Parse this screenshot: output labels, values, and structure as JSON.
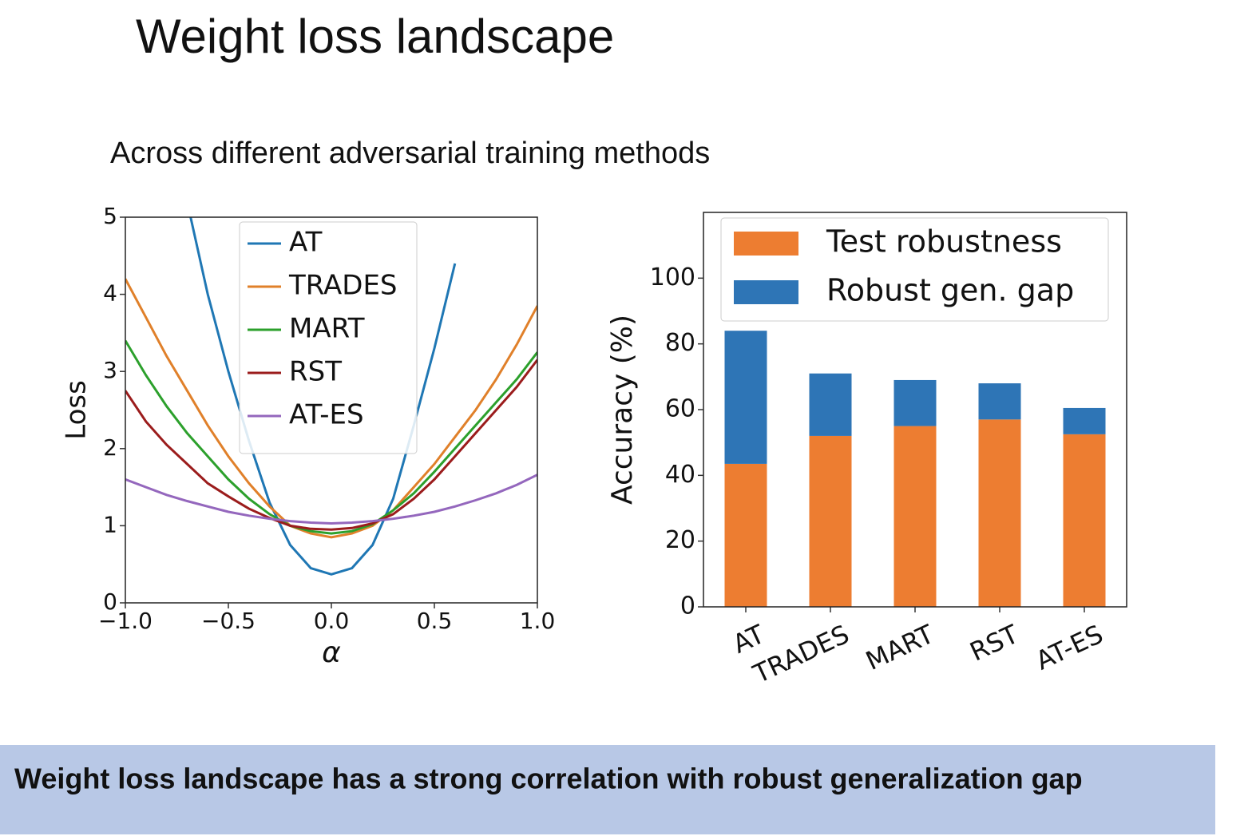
{
  "title": "Weight loss landscape",
  "subtitle": "Across different adversarial training methods",
  "footer": "Weight loss landscape has a strong correlation with robust generalization gap",
  "chart_data": [
    {
      "type": "line",
      "xlabel": "α",
      "ylabel": "Loss",
      "x": [
        -1.0,
        -0.9,
        -0.8,
        -0.7,
        -0.6,
        -0.5,
        -0.4,
        -0.3,
        -0.2,
        -0.1,
        0.0,
        0.1,
        0.2,
        0.3,
        0.4,
        0.5,
        0.6,
        0.7,
        0.8,
        0.9,
        1.0
      ],
      "xlim": [
        -1.0,
        1.0
      ],
      "xticks": [
        {
          "value": -1.0,
          "label": "−1.0"
        },
        {
          "value": -0.5,
          "label": "−0.5"
        },
        {
          "value": 0.0,
          "label": "0.0"
        },
        {
          "value": 0.5,
          "label": "0.5"
        },
        {
          "value": 1.0,
          "label": "1.0"
        }
      ],
      "ylim": [
        0,
        5
      ],
      "yticks": [
        0,
        1,
        2,
        3,
        4,
        5
      ],
      "legend": "upper center",
      "series": [
        {
          "name": "AT",
          "color": "#1f77b4",
          "values": [
            null,
            null,
            null,
            5.2,
            4.0,
            3.0,
            2.1,
            1.3,
            0.75,
            0.45,
            0.37,
            0.45,
            0.75,
            1.35,
            2.3,
            3.3,
            4.4,
            null,
            null,
            null,
            null
          ]
        },
        {
          "name": "TRADES",
          "color": "#e0802a",
          "values": [
            4.2,
            3.7,
            3.2,
            2.75,
            2.3,
            1.9,
            1.55,
            1.25,
            1.0,
            0.9,
            0.85,
            0.9,
            1.0,
            1.2,
            1.5,
            1.8,
            2.15,
            2.5,
            2.9,
            3.35,
            3.85
          ]
        },
        {
          "name": "MART",
          "color": "#2ca02c",
          "values": [
            3.4,
            2.95,
            2.55,
            2.2,
            1.9,
            1.6,
            1.35,
            1.15,
            1.0,
            0.93,
            0.9,
            0.93,
            1.02,
            1.2,
            1.42,
            1.7,
            2.0,
            2.3,
            2.6,
            2.9,
            3.25
          ]
        },
        {
          "name": "RST",
          "color": "#9b1c1c",
          "values": [
            2.75,
            2.35,
            2.05,
            1.8,
            1.55,
            1.38,
            1.22,
            1.1,
            1.0,
            0.96,
            0.95,
            0.97,
            1.03,
            1.15,
            1.35,
            1.6,
            1.9,
            2.2,
            2.5,
            2.8,
            3.15
          ]
        },
        {
          "name": "AT-ES",
          "color": "#9467bd",
          "values": [
            1.6,
            1.5,
            1.4,
            1.32,
            1.25,
            1.18,
            1.13,
            1.09,
            1.06,
            1.04,
            1.03,
            1.04,
            1.06,
            1.09,
            1.13,
            1.18,
            1.25,
            1.33,
            1.42,
            1.53,
            1.66
          ]
        }
      ]
    },
    {
      "type": "bar",
      "stacked": true,
      "ylabel": "Accuracy (%)",
      "categories": [
        "AT",
        "TRADES",
        "MART",
        "RST",
        "AT-ES"
      ],
      "ylim": [
        0,
        120
      ],
      "yticks": [
        0,
        20,
        40,
        60,
        80,
        100
      ],
      "legend": "upper right",
      "series": [
        {
          "name": "Test robustness",
          "color": "#ed7d31",
          "values": [
            43.5,
            52,
            55,
            57,
            52.5
          ]
        },
        {
          "name": "Robust gen. gap",
          "color": "#2e75b6",
          "values": [
            40.5,
            19,
            14,
            11,
            8
          ]
        }
      ]
    }
  ]
}
